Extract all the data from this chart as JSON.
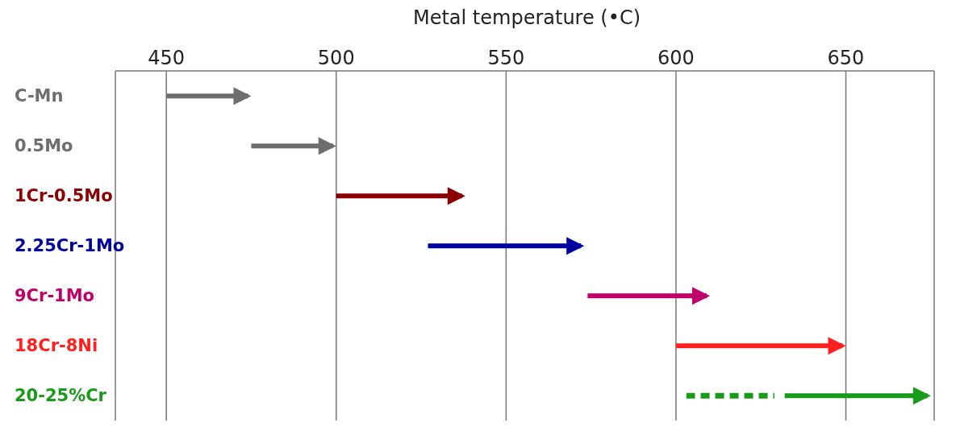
{
  "chart_data": {
    "type": "bar",
    "orientation": "horizontal",
    "xlabel": "Metal temperature (•C)",
    "categories": [
      "C-Mn",
      "0.5Mo",
      "1Cr-0.5Mo",
      "2.25Cr-1Mo",
      "9Cr-1Mo",
      "18Cr-8Ni",
      "20-25%Cr"
    ],
    "series": [
      {
        "colors": [
          "#6e6e6e",
          "#6e6e6e",
          "#8b0000",
          "#0000a0",
          "#c0006a",
          "#ff2020",
          "#1a9a1a"
        ],
        "base": [
          450,
          475,
          500,
          527,
          574,
          600,
          632
        ],
        "values": [
          25,
          25,
          38,
          46,
          36,
          50,
          43
        ],
        "line_style": "solid"
      },
      {
        "color": "#1a9a1a",
        "base": [
          null,
          null,
          null,
          null,
          null,
          null,
          603
        ],
        "values": [
          null,
          null,
          null,
          null,
          null,
          null,
          26
        ],
        "line_style": "dotted"
      }
    ],
    "xlim": [
      435,
      676
    ],
    "xticks": [
      450,
      500,
      550,
      600,
      650
    ],
    "grid": "x"
  }
}
